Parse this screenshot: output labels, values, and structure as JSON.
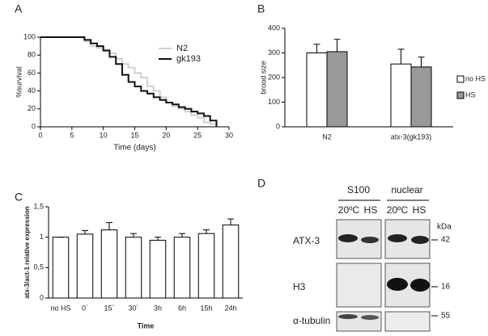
{
  "chart_data": [
    {
      "type": "line",
      "panel": "A",
      "xlabel": "Time (days)",
      "ylabel": "%survival",
      "step": true,
      "legend": "upper right",
      "x": [
        0,
        7,
        8,
        9,
        10,
        11,
        12,
        13,
        14,
        15,
        16,
        17,
        18,
        19,
        20,
        21,
        22,
        23,
        24,
        25,
        26,
        27,
        28
      ],
      "series": [
        {
          "name": "N2",
          "color": "#d0d0d0",
          "values": [
            100,
            95,
            90,
            88,
            86,
            82,
            76,
            70,
            66,
            60,
            55,
            45,
            40,
            33,
            27,
            23,
            20,
            17,
            13,
            10,
            5,
            3,
            0
          ]
        },
        {
          "name": "gk193",
          "color": "#111111",
          "values": [
            100,
            97,
            93,
            90,
            85,
            78,
            70,
            58,
            50,
            45,
            40,
            37,
            33,
            30,
            27,
            25,
            22,
            20,
            17,
            15,
            12,
            7,
            0
          ]
        }
      ],
      "xlim": [
        0,
        30
      ],
      "xticks": [
        0,
        5,
        10,
        15,
        20,
        25,
        30
      ],
      "ylim": [
        0,
        100
      ],
      "yticks": [
        0,
        20,
        40,
        60,
        80,
        100
      ]
    },
    {
      "type": "bar",
      "panel": "B",
      "ylabel": "brood size",
      "legend": "right",
      "categories": [
        "N2",
        "atx-3(gk193)"
      ],
      "series": [
        {
          "name": "no HS",
          "color": "#ffffff",
          "values": [
            300,
            255
          ],
          "errors": [
            35,
            60
          ]
        },
        {
          "name": "HS",
          "color": "#999999",
          "values": [
            305,
            243
          ],
          "errors": [
            50,
            40
          ]
        }
      ],
      "ylim": [
        0,
        400
      ],
      "yticks": [
        0,
        100,
        200,
        300,
        400
      ]
    },
    {
      "type": "bar",
      "panel": "C",
      "xlabel": "Time",
      "ylabel": "atx-3/act-1 relative expression",
      "categories": [
        "no HS",
        "0´",
        "15´",
        "30´",
        "3h",
        "6h",
        "15h",
        "24h"
      ],
      "series": [
        {
          "color": "#ffffff",
          "values": [
            1,
            1.05,
            1.12,
            1.0,
            0.95,
            1.0,
            1.06,
            1.2
          ],
          "errors": [
            0,
            0.06,
            0.12,
            0.06,
            0.05,
            0.06,
            0.06,
            0.1
          ]
        }
      ],
      "ylim": [
        0,
        1.5
      ],
      "yticks": [
        0,
        {
          "value": 0.5,
          "label": "0,5"
        },
        1,
        {
          "value": 1.5,
          "label": "1,5"
        }
      ]
    }
  ],
  "blot": {
    "panel": "D",
    "groups": [
      "S100",
      "nuclear"
    ],
    "lanes": [
      "20ºC",
      "HS",
      "20ºC",
      "HS"
    ],
    "unit": "kDa",
    "rows": [
      {
        "label": "ATX-3",
        "kda": 42
      },
      {
        "label": "H3",
        "kda": 16
      },
      {
        "label": "α-tubulin",
        "kda": 55
      }
    ]
  }
}
